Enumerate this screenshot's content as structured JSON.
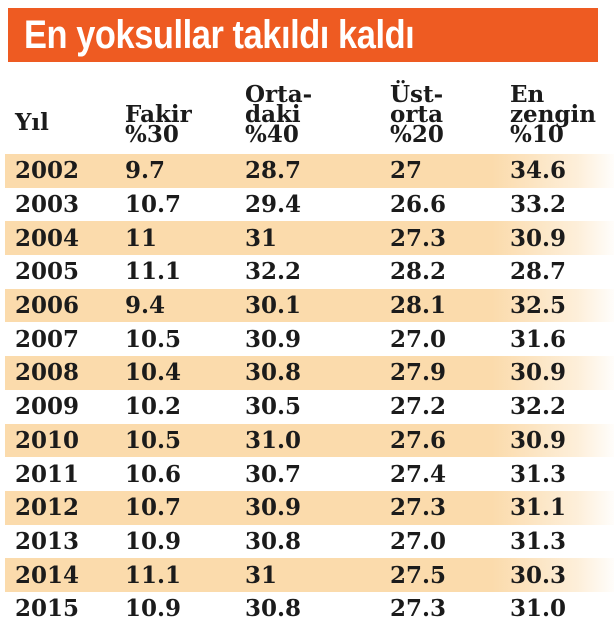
{
  "title": "En yoksullar takıldı kaldı",
  "colors": {
    "banner_orange": "#ee5b22",
    "stripe_peach": "#fbdbac",
    "text_dark": "#1b1b1b",
    "title_text": "#ffffff"
  },
  "chart_data": {
    "type": "table",
    "title": "En yoksullar takıldı kaldı",
    "columns": [
      "Yıl",
      "Fakir %30",
      "Orta-daki %40",
      "Üst-orta %20",
      "En zengin %10"
    ],
    "header_lines": [
      [
        "Yıl"
      ],
      [
        "Fakir",
        "%30"
      ],
      [
        "Orta-",
        "daki",
        "%40"
      ],
      [
        "Üst-",
        "orta",
        "%20"
      ],
      [
        "En",
        "zengin",
        "%10"
      ]
    ],
    "rows": [
      [
        "2002",
        "9.7",
        "28.7",
        "27",
        "34.6"
      ],
      [
        "2003",
        "10.7",
        "29.4",
        "26.6",
        "33.2"
      ],
      [
        "2004",
        "11",
        "31",
        "27.3",
        "30.9"
      ],
      [
        "2005",
        "11.1",
        "32.2",
        "28.2",
        "28.7"
      ],
      [
        "2006",
        "9.4",
        "30.1",
        "28.1",
        "32.5"
      ],
      [
        "2007",
        "10.5",
        "30.9",
        "27.0",
        "31.6"
      ],
      [
        "2008",
        "10.4",
        "30.8",
        "27.9",
        "30.9"
      ],
      [
        "2009",
        "10.2",
        "30.5",
        "27.2",
        "32.2"
      ],
      [
        "2010",
        "10.5",
        "31.0",
        "27.6",
        "30.9"
      ],
      [
        "2011",
        "10.6",
        "30.7",
        "27.4",
        "31.3"
      ],
      [
        "2012",
        "10.7",
        "30.9",
        "27.3",
        "31.1"
      ],
      [
        "2013",
        "10.9",
        "30.8",
        "27.0",
        "31.3"
      ],
      [
        "2014",
        "11.1",
        "31",
        "27.5",
        "30.3"
      ],
      [
        "2015",
        "10.9",
        "30.8",
        "27.3",
        "31.0"
      ]
    ],
    "layout": {
      "striped_rows": "odd rows peach, fading to white at right edge",
      "alignment": "left-aligned columns",
      "grid": false,
      "legend": false
    }
  }
}
